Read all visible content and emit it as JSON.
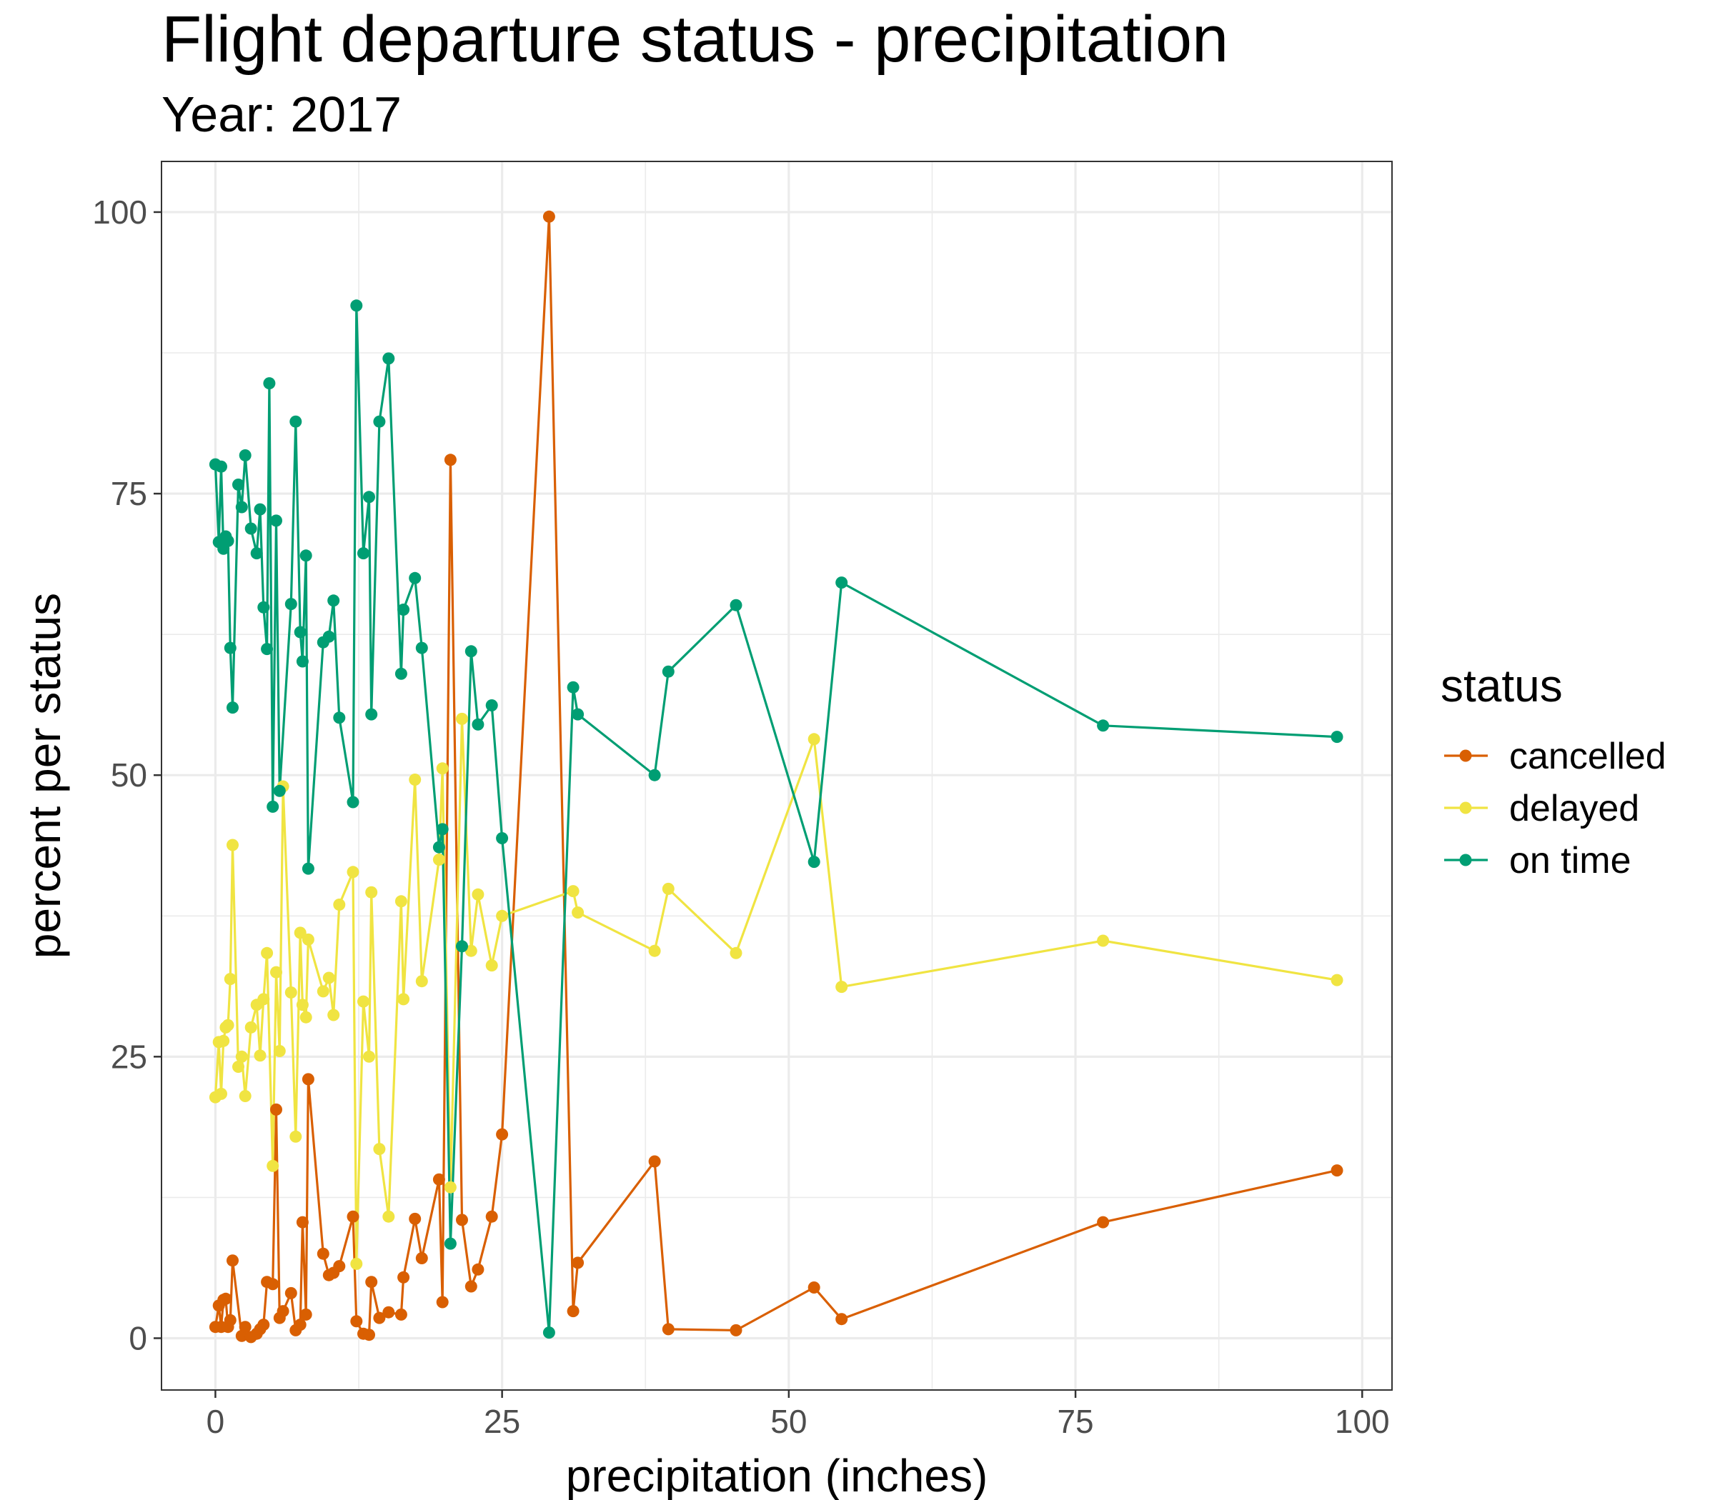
{
  "chart_data": {
    "type": "line",
    "title": "Flight departure status - precipitation",
    "subtitle": "Year: 2017",
    "xlabel": "precipitation (inches)",
    "ylabel": "percent per status",
    "xlim": [
      -4.7,
      102.6
    ],
    "ylim": [
      -4.6,
      104.5
    ],
    "x_ticks": [
      0,
      25,
      50,
      75,
      100
    ],
    "x_tick_labels": [
      "0",
      "25",
      "50",
      "75",
      "100"
    ],
    "y_ticks": [
      0,
      25,
      50,
      75,
      100
    ],
    "y_tick_labels": [
      "0",
      "25",
      "50",
      "75",
      "100"
    ],
    "x_minor": [
      12.5,
      37.5,
      62.5,
      87.5
    ],
    "y_minor": [
      12.5,
      37.5,
      62.5,
      87.5
    ],
    "grid": true,
    "legend": {
      "title": "status",
      "position": "right"
    },
    "series": [
      {
        "name": "cancelled",
        "color": "#D95F02",
        "x": [
          0,
          0.3,
          0.5,
          0.7,
          0.9,
          1.1,
          1.3,
          1.5,
          2.3,
          2.6,
          3.1,
          3.6,
          3.9,
          4.2,
          4.5,
          5,
          5.3,
          5.6,
          5.9,
          6.6,
          7,
          7.4,
          7.6,
          7.9,
          8.1,
          9.4,
          9.9,
          10.3,
          10.8,
          12,
          12.3,
          12.9,
          13.4,
          13.6,
          14.3,
          15.1,
          16.2,
          16.4,
          17.4,
          18,
          19.5,
          19.8,
          20.5,
          21.5,
          22.3,
          22.9,
          24.1,
          25,
          29.1,
          31.2,
          31.6,
          38.3,
          39.5,
          45.4,
          52.2,
          54.6,
          77.4,
          97.8
        ],
        "values": [
          1.0,
          2.9,
          1.0,
          3.4,
          3.5,
          1.0,
          1.6,
          6.9,
          0.2,
          1.0,
          0.1,
          0.4,
          0.8,
          1.2,
          5.0,
          4.8,
          20.3,
          1.8,
          2.4,
          4.0,
          0.7,
          1.2,
          10.3,
          2.1,
          23.0,
          7.5,
          5.6,
          5.8,
          6.4,
          10.8,
          1.5,
          0.4,
          0.3,
          5.0,
          1.8,
          2.3,
          2.1,
          5.4,
          10.6,
          7.1,
          14.1,
          3.2,
          78.0,
          10.5,
          4.6,
          6.1,
          10.8,
          18.1,
          99.6,
          2.4,
          6.7,
          15.7,
          0.8,
          0.7,
          4.5,
          1.7,
          10.3,
          14.9
        ]
      },
      {
        "name": "delayed",
        "color": "#F0E442",
        "x": [
          0,
          0.3,
          0.5,
          0.7,
          0.9,
          1.1,
          1.3,
          1.5,
          2,
          2.3,
          2.6,
          3.1,
          3.6,
          3.9,
          4.2,
          4.5,
          5,
          5.3,
          5.6,
          5.9,
          6.6,
          7,
          7.4,
          7.6,
          7.9,
          8.1,
          9.4,
          9.9,
          10.3,
          10.8,
          12,
          12.3,
          12.9,
          13.4,
          13.6,
          14.3,
          15.1,
          16.2,
          16.4,
          17.4,
          18,
          19.5,
          19.8,
          20.5,
          21.5,
          22.3,
          22.9,
          24.1,
          25,
          31.2,
          31.6,
          38.3,
          39.5,
          45.4,
          52.2,
          54.6,
          77.4,
          97.8
        ],
        "values": [
          21.4,
          26.3,
          21.7,
          26.4,
          27.6,
          27.8,
          31.9,
          43.8,
          24.1,
          25.0,
          21.5,
          27.6,
          29.6,
          25.1,
          30.1,
          34.2,
          15.3,
          32.5,
          25.5,
          49.0,
          30.7,
          17.9,
          36.0,
          29.6,
          28.5,
          35.4,
          30.8,
          32.0,
          28.7,
          38.5,
          41.4,
          6.6,
          29.9,
          25.0,
          39.6,
          16.8,
          10.8,
          38.8,
          30.1,
          49.6,
          31.7,
          42.5,
          50.6,
          13.4,
          55.0,
          34.4,
          39.4,
          33.1,
          37.5,
          39.7,
          37.8,
          34.4,
          39.9,
          34.2,
          53.2,
          31.2,
          35.3,
          31.8
        ]
      },
      {
        "name": "on time",
        "color": "#009E73",
        "x": [
          0,
          0.3,
          0.5,
          0.7,
          0.9,
          1.1,
          1.3,
          1.5,
          2,
          2.3,
          2.6,
          3.1,
          3.6,
          3.9,
          4.2,
          4.5,
          4.7,
          5,
          5.3,
          5.6,
          6.6,
          7,
          7.4,
          7.6,
          7.9,
          8.1,
          9.4,
          9.9,
          10.3,
          10.8,
          12,
          12.3,
          12.9,
          13.4,
          13.6,
          14.3,
          15.1,
          16.2,
          16.4,
          17.4,
          18,
          19.5,
          19.8,
          20.5,
          21.5,
          22.3,
          22.9,
          24.1,
          25,
          29.1,
          31.2,
          31.6,
          38.3,
          39.5,
          45.4,
          52.2,
          54.6,
          77.4,
          97.8
        ],
        "values": [
          77.6,
          70.7,
          77.4,
          70.1,
          71.2,
          70.8,
          61.3,
          56.0,
          75.8,
          73.8,
          78.4,
          71.9,
          69.7,
          73.6,
          64.9,
          61.2,
          84.8,
          47.2,
          72.6,
          48.6,
          65.2,
          81.4,
          62.7,
          60.1,
          69.5,
          41.7,
          61.8,
          62.3,
          65.5,
          55.1,
          47.6,
          91.7,
          69.7,
          74.7,
          55.4,
          81.4,
          87.0,
          59.0,
          64.7,
          67.5,
          61.3,
          43.6,
          45.2,
          8.4,
          34.8,
          61.0,
          54.5,
          56.2,
          44.4,
          0.5,
          57.8,
          55.4,
          50.0,
          59.2,
          65.1,
          42.3,
          67.1,
          54.4,
          53.4
        ]
      }
    ]
  }
}
